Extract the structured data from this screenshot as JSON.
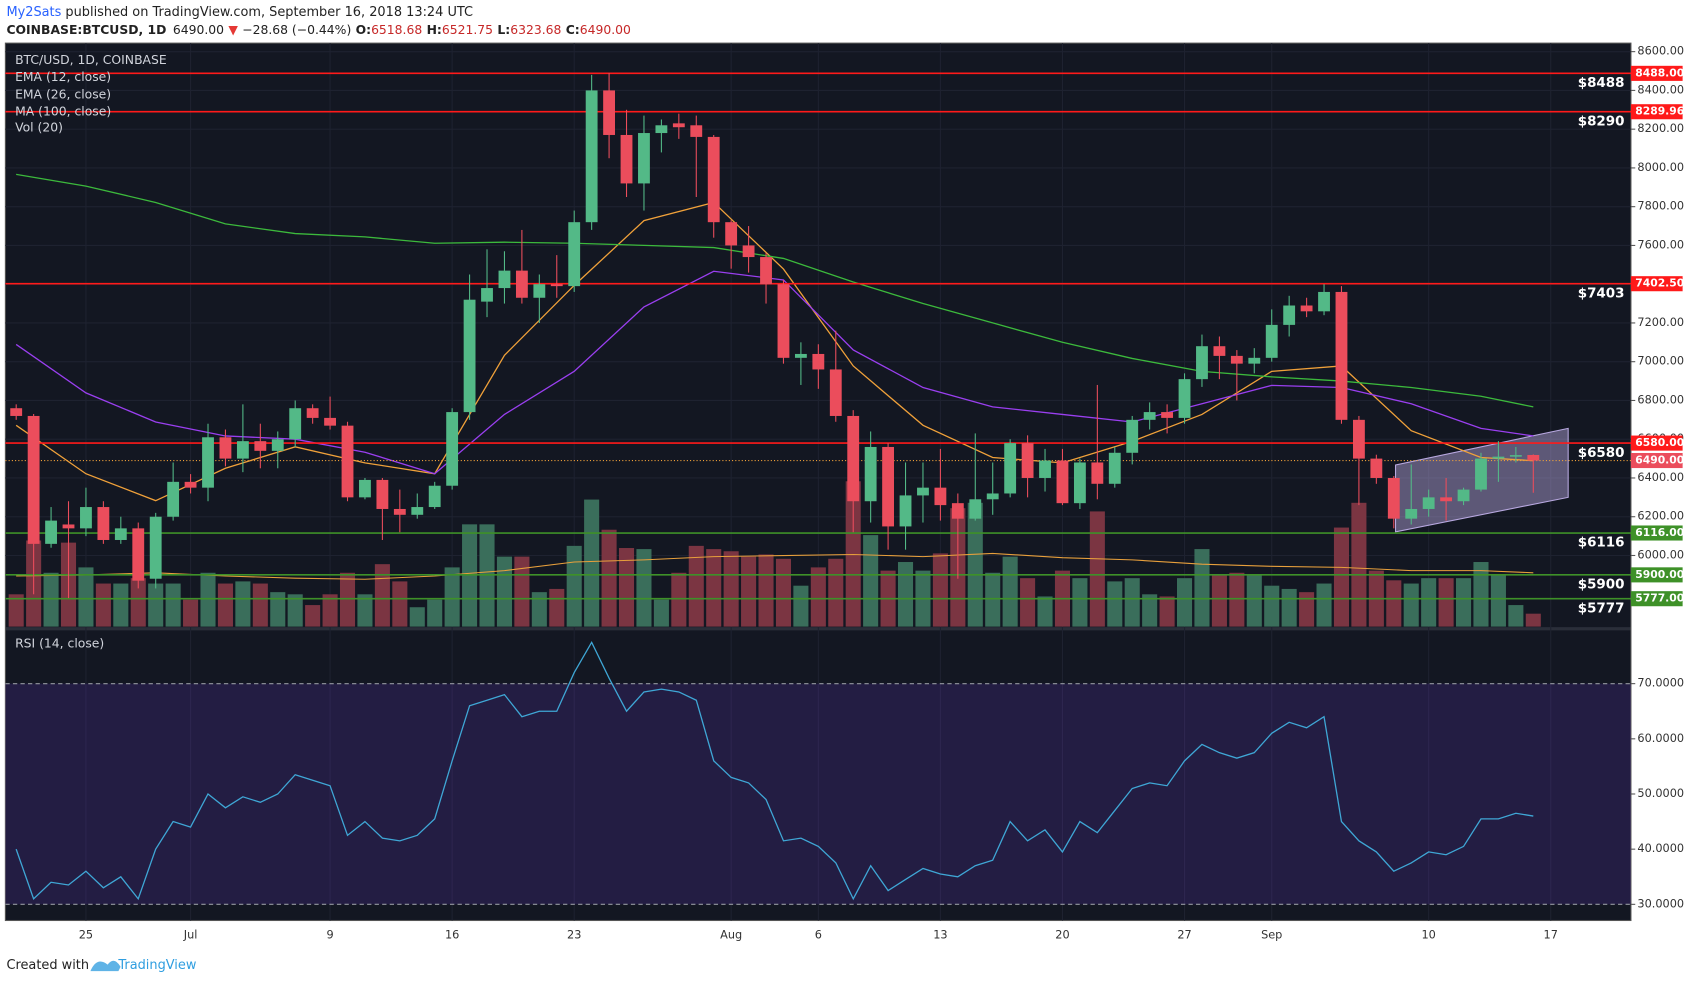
{
  "header": {
    "author": "My2Sats",
    "published": " published on TradingView.com, September 16, 2018 13:24 UTC",
    "symbol": "COINBASE:BTCUSD, 1D",
    "last": "6490.00",
    "arrow": "▼",
    "change": "−28.68 (−0.44%)",
    "o_label": "O:",
    "o": "6518.68",
    "h_label": "H:",
    "h": "6521.75",
    "l_label": "L:",
    "l": "6323.68",
    "c_label": "C:",
    "c": "6490.00"
  },
  "footer": {
    "created": "Created with",
    "brand": "TradingView"
  },
  "chart_data": {
    "type": "candlestick",
    "title": "BTC/USD, 1D, COINBASE",
    "xlim": [
      -0.62,
      92.6
    ],
    "xticks": [
      {
        "value": 4,
        "label": "25"
      },
      {
        "value": 10,
        "label": "Jul"
      },
      {
        "value": 18,
        "label": "9"
      },
      {
        "value": 25,
        "label": "16"
      },
      {
        "value": 32,
        "label": "23"
      },
      {
        "value": 41,
        "label": "Aug"
      },
      {
        "value": 46,
        "label": "6"
      },
      {
        "value": 53,
        "label": "13"
      },
      {
        "value": 60,
        "label": "20"
      },
      {
        "value": 67,
        "label": "27"
      },
      {
        "value": 72,
        "label": "Sep"
      },
      {
        "value": 81,
        "label": "10"
      },
      {
        "value": 88,
        "label": "17"
      }
    ],
    "ylim": [
      5633,
      8644
    ],
    "yticks": [
      {
        "value": 8600,
        "label": "8600.00"
      },
      {
        "value": 8400,
        "label": "8400.00"
      },
      {
        "value": 8200,
        "label": "8200.00"
      },
      {
        "value": 8000,
        "label": "8000.00"
      },
      {
        "value": 7800,
        "label": "7800.00"
      },
      {
        "value": 7600,
        "label": "7600.00"
      },
      {
        "value": 7400,
        "label": "7400.00"
      },
      {
        "value": 7200,
        "label": "7200.00"
      },
      {
        "value": 7000,
        "label": "7000.00"
      },
      {
        "value": 6800,
        "label": "6800.00"
      },
      {
        "value": 6600,
        "label": "6600.00"
      },
      {
        "value": 6400,
        "label": "6400.00"
      },
      {
        "value": 6200,
        "label": "6200.00"
      },
      {
        "value": 6000,
        "label": "6000.00"
      }
    ],
    "grid": true,
    "up_color": "#53b987",
    "down_color": "#eb4d5c",
    "open": [
      6760,
      6720,
      6060,
      6160,
      6140,
      6250,
      6080,
      6140,
      5880,
      6200,
      6380,
      6350,
      6610,
      6500,
      6590,
      6540,
      6600,
      6760,
      6710,
      6670,
      6300,
      6390,
      6240,
      6210,
      6250,
      6360,
      6740,
      7310,
      7380,
      7470,
      7330,
      7400,
      7390,
      7720,
      8400,
      8170,
      7920,
      8180,
      8230,
      8220,
      8160,
      7720,
      7600,
      7540,
      7400,
      7020,
      7040,
      6960,
      6720,
      6280,
      6560,
      6150,
      6310,
      6350,
      6270,
      6190,
      6290,
      6320,
      6580,
      6400,
      6490,
      6270,
      6480,
      6370,
      6530,
      6700,
      6740,
      6710,
      6910,
      7080,
      7030,
      6990,
      7020,
      7190,
      7290,
      7260,
      7360,
      6700,
      6500,
      6400,
      6190,
      6240,
      6300,
      6280,
      6340,
      6500,
      6510,
      6518.68
    ],
    "high": [
      6780,
      6730,
      6250,
      6280,
      6350,
      6280,
      6200,
      6170,
      6220,
      6480,
      6420,
      6680,
      6650,
      6780,
      6680,
      6640,
      6800,
      6780,
      6820,
      6690,
      6400,
      6400,
      6340,
      6320,
      6380,
      6760,
      7450,
      7580,
      7570,
      7680,
      7450,
      7550,
      7780,
      8480,
      8490,
      8300,
      8270,
      8250,
      8280,
      8270,
      8170,
      7730,
      7700,
      7560,
      7420,
      7100,
      7090,
      7160,
      6750,
      6640,
      6580,
      6480,
      6480,
      6550,
      6320,
      6630,
      6480,
      6600,
      6620,
      6550,
      6550,
      6500,
      6880,
      6560,
      6720,
      6790,
      6780,
      6940,
      7140,
      7130,
      7060,
      7070,
      7270,
      7340,
      7330,
      7400,
      7390,
      6720,
      6520,
      6410,
      6470,
      6340,
      6400,
      6350,
      6530,
      6590,
      6560,
      6521.75
    ],
    "low": [
      6700,
      5800,
      6040,
      5780,
      6100,
      6060,
      6060,
      5830,
      5830,
      6180,
      6320,
      6280,
      6460,
      6430,
      6450,
      6450,
      6560,
      6680,
      6650,
      6280,
      6290,
      6080,
      6120,
      6190,
      6240,
      6340,
      6700,
      7230,
      7300,
      7300,
      7200,
      7330,
      7360,
      7680,
      8050,
      7850,
      7780,
      8080,
      8150,
      7850,
      7640,
      7480,
      7460,
      7300,
      6990,
      6880,
      6860,
      6690,
      6120,
      6170,
      6030,
      6030,
      6170,
      6180,
      5880,
      6180,
      6210,
      6300,
      6300,
      6330,
      6260,
      6240,
      6290,
      6350,
      6470,
      6650,
      6630,
      6680,
      6870,
      6910,
      6800,
      6940,
      7000,
      7130,
      7230,
      7240,
      6680,
      6260,
      6370,
      6140,
      6160,
      6200,
      6180,
      6260,
      6330,
      6380,
      6480,
      6323.68
    ],
    "close": [
      6720,
      6060,
      6180,
      6140,
      6250,
      6080,
      6140,
      5870,
      6200,
      6380,
      6350,
      6610,
      6500,
      6590,
      6540,
      6600,
      6760,
      6710,
      6670,
      6300,
      6390,
      6240,
      6210,
      6250,
      6360,
      6740,
      7320,
      7380,
      7470,
      7330,
      7400,
      7390,
      7720,
      8400,
      8170,
      7920,
      8180,
      8220,
      8210,
      8160,
      7720,
      7600,
      7540,
      7400,
      7020,
      7040,
      6960,
      6720,
      6280,
      6560,
      6150,
      6310,
      6350,
      6260,
      6190,
      6290,
      6320,
      6580,
      6400,
      6490,
      6270,
      6480,
      6370,
      6530,
      6700,
      6740,
      6710,
      6910,
      7080,
      7030,
      6990,
      7020,
      7190,
      7290,
      7260,
      7360,
      6700,
      6500,
      6400,
      6190,
      6240,
      6300,
      6280,
      6340,
      6500,
      6510,
      6518,
      6490
    ],
    "lines": [
      {
        "name": "EMA (12, close)",
        "color": "#f0a13a",
        "x": [
          0,
          4,
          8,
          12,
          16,
          20,
          24,
          28,
          32,
          36,
          40,
          44,
          48,
          52,
          56,
          60,
          64,
          68,
          72,
          76,
          80,
          84,
          87
        ],
        "values": [
          6672,
          6422,
          6283,
          6450,
          6561,
          6478,
          6422,
          7033,
          7394,
          7728,
          7822,
          7478,
          6978,
          6672,
          6506,
          6478,
          6589,
          6728,
          6950,
          6978,
          6644,
          6506,
          6489
        ]
      },
      {
        "name": "EMA (26, close)",
        "color": "#9a3ff0",
        "x": [
          0,
          4,
          8,
          12,
          16,
          20,
          24,
          28,
          32,
          36,
          40,
          44,
          48,
          52,
          56,
          60,
          64,
          68,
          72,
          76,
          80,
          84,
          87
        ],
        "values": [
          7089,
          6839,
          6689,
          6617,
          6600,
          6533,
          6422,
          6728,
          6950,
          7283,
          7467,
          7422,
          7061,
          6867,
          6767,
          6728,
          6689,
          6783,
          6878,
          6867,
          6783,
          6656,
          6617
        ]
      },
      {
        "name": "MA (100, close)",
        "color": "#3cb93c",
        "x": [
          0,
          4,
          8,
          12,
          16,
          20,
          24,
          28,
          32,
          36,
          40,
          44,
          48,
          52,
          56,
          60,
          64,
          68,
          72,
          76,
          80,
          84,
          87
        ],
        "values": [
          7967,
          7906,
          7822,
          7711,
          7661,
          7644,
          7611,
          7617,
          7611,
          7600,
          7589,
          7533,
          7411,
          7300,
          7200,
          7100,
          7017,
          6950,
          6922,
          6900,
          6867,
          6822,
          6767
        ]
      }
    ],
    "volume": {
      "name": "Vol (20)",
      "lim": [
        0,
        542
      ],
      "up_color": "#3a6e5b",
      "down_color": "#7b3542",
      "values": [
        30,
        80,
        50,
        78,
        55,
        40,
        40,
        45,
        40,
        40,
        25,
        50,
        40,
        42,
        40,
        32,
        30,
        20,
        30,
        50,
        30,
        58,
        42,
        18,
        25,
        55,
        95,
        95,
        65,
        65,
        32,
        35,
        75,
        118,
        90,
        73,
        72,
        25,
        50,
        75,
        72,
        70,
        65,
        67,
        63,
        38,
        55,
        63,
        135,
        85,
        52,
        60,
        52,
        68,
        110,
        115,
        50,
        65,
        45,
        28,
        52,
        45,
        107,
        42,
        45,
        30,
        28,
        45,
        72,
        48,
        50,
        48,
        38,
        35,
        32,
        40,
        92,
        115,
        52,
        43,
        40,
        45,
        45,
        45,
        60,
        48,
        20,
        12
      ],
      "ma": {
        "color": "#e8a03c",
        "x": [
          0,
          4,
          8,
          12,
          16,
          20,
          24,
          28,
          32,
          36,
          40,
          44,
          48,
          52,
          56,
          60,
          64,
          68,
          72,
          76,
          80,
          84,
          87
        ],
        "values": [
          47,
          48,
          50,
          47,
          45,
          44,
          47,
          52,
          60,
          62,
          65,
          66,
          67,
          65,
          68,
          64,
          62,
          58,
          56,
          55,
          52,
          52,
          50
        ]
      }
    },
    "levels": [
      {
        "value": 8488,
        "label": "$8488",
        "axis_label": "8488.00",
        "color": "#ff1a1a"
      },
      {
        "value": 8289.96,
        "label": "$8290",
        "axis_label": "8289.96",
        "color": "#ff1a1a"
      },
      {
        "value": 7402.5,
        "label": "$7403",
        "axis_label": "7402.50",
        "color": "#ff1a1a"
      },
      {
        "value": 6580,
        "label": "$6580",
        "axis_label": "6580.00",
        "color": "#ff1a1a"
      },
      {
        "value": 6116,
        "label": "$6116",
        "axis_label": "6116.00",
        "color": "#3e9128"
      },
      {
        "value": 5900,
        "label": "$5900",
        "axis_label": "5900.00",
        "color": "#3e9128"
      },
      {
        "value": 5777,
        "label": "$5777",
        "axis_label": "5777.00",
        "color": "#3e9128"
      }
    ],
    "last_price": {
      "value": 6490,
      "label": "6490.00",
      "color": "#eb4d5c"
    },
    "channel": {
      "x": [
        79.1,
        89,
        89,
        79.1
      ],
      "y": [
        6467,
        6656,
        6300,
        6122
      ],
      "color": "#b8a8e0"
    },
    "rsi": {
      "name": "RSI (14, close)",
      "color": "#3fa7d6",
      "ylim": [
        27.07,
        79.56
      ],
      "yticks": [
        {
          "value": 70,
          "label": "70.0000"
        },
        {
          "value": 60,
          "label": "60.0000"
        },
        {
          "value": 50,
          "label": "50.0000"
        },
        {
          "value": 40,
          "label": "40.0000"
        },
        {
          "value": 30,
          "label": "30.0000"
        }
      ],
      "band": [
        30,
        70
      ],
      "values": [
        40,
        31,
        34,
        33.5,
        36,
        33,
        35,
        31,
        40,
        45,
        44,
        50,
        47.5,
        49.5,
        48.5,
        50,
        53.5,
        52.5,
        51.5,
        42.5,
        45,
        42,
        41.5,
        42.5,
        45.5,
        56,
        66,
        67,
        68,
        64,
        65,
        65,
        72,
        77.5,
        71,
        65,
        68.5,
        69,
        68.5,
        67,
        56,
        53,
        52,
        49,
        41.5,
        42,
        40.5,
        37.5,
        31,
        37,
        32.5,
        34.5,
        36.5,
        35.5,
        35,
        37,
        38,
        45,
        41.5,
        43.5,
        39.5,
        45,
        43,
        47,
        51,
        52,
        51.5,
        56,
        59,
        57.5,
        56.5,
        57.5,
        61,
        63,
        62,
        64,
        45,
        41.5,
        39.5,
        36,
        37.5,
        39.5,
        39,
        40.5,
        45.5,
        45.5,
        46.5,
        46
      ]
    }
  }
}
